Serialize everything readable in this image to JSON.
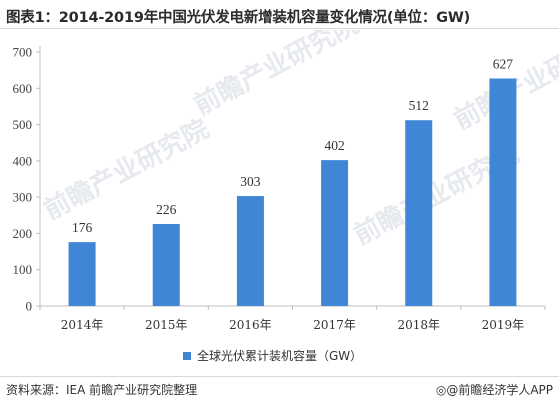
{
  "title": "图表1：2014-2019年中国光伏发电新增装机容量变化情况(单位：GW)",
  "colors": {
    "bar": "#3f86d6",
    "grid": "#d9d9d9",
    "axis": "#bfbfbf",
    "watermark": "#e6e9ee"
  },
  "watermark": {
    "text": "前瞻产业研究院"
  },
  "chart_data": {
    "type": "bar",
    "categories": [
      "2014年",
      "2015年",
      "2016年",
      "2017年",
      "2018年",
      "2019年"
    ],
    "series": [
      {
        "name": "全球光伏累计装机容量（GW）",
        "values": [
          176,
          226,
          303,
          402,
          512,
          627
        ]
      }
    ],
    "ylim": [
      0,
      700
    ],
    "yticks": [
      0,
      100,
      200,
      300,
      400,
      500,
      600,
      700
    ],
    "grid": false,
    "legend": "bottom-center",
    "data_labels": true
  },
  "footer": {
    "source": "资料来源：IEA 前瞻产业研究院整理",
    "brand": "@前瞻经济学人APP",
    "brand_icon": "brand-logo-icon"
  }
}
